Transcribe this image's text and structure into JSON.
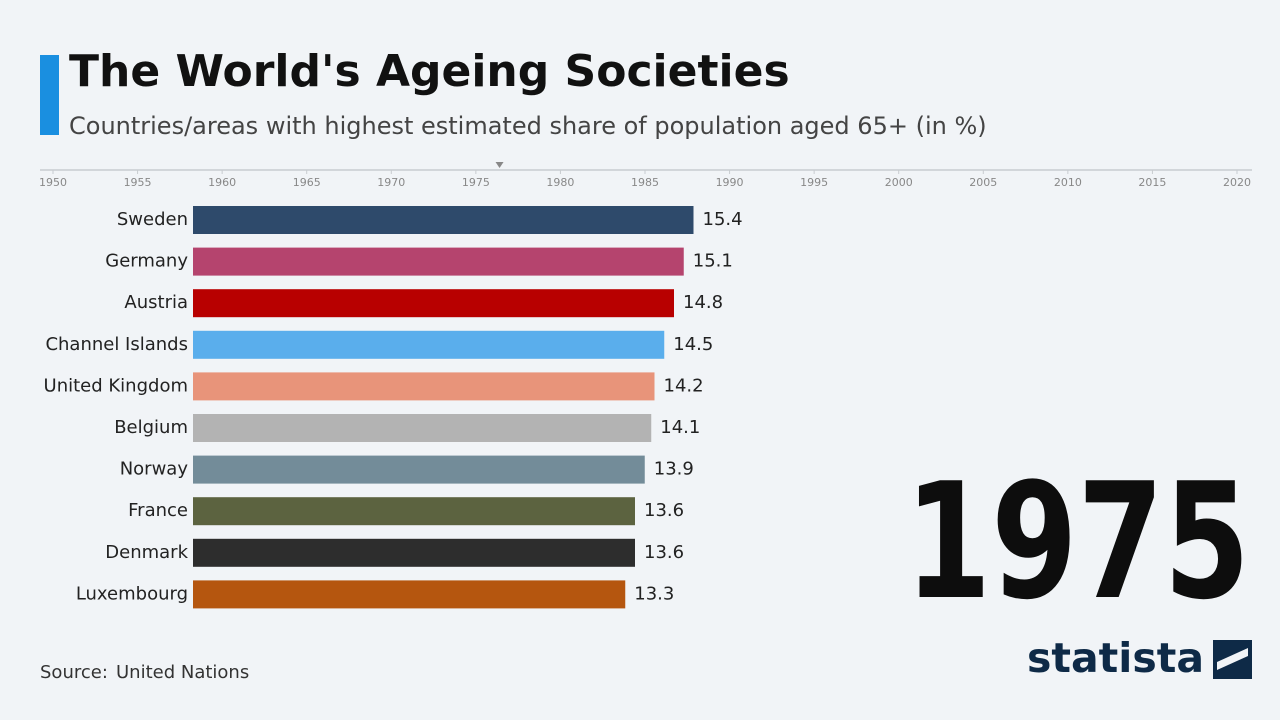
{
  "chart_data": {
    "type": "bar",
    "orientation": "horizontal",
    "title": "The World's Ageing Societies",
    "subtitle": "Countries/areas with highest estimated share of population aged 65+ (in %)",
    "categories": [
      "Sweden",
      "Germany",
      "Austria",
      "Channel Islands",
      "United Kingdom",
      "Belgium",
      "Norway",
      "France",
      "Denmark",
      "Luxembourg"
    ],
    "values": [
      15.4,
      15.1,
      14.8,
      14.5,
      14.2,
      14.1,
      13.9,
      13.6,
      13.6,
      13.3
    ],
    "colors": [
      "#2e4a6b",
      "#b5446e",
      "#b80000",
      "#5aaeec",
      "#e8947a",
      "#b3b3b3",
      "#738c99",
      "#5c6340",
      "#2d2d2d",
      "#b5560f"
    ],
    "xlim": [
      0,
      20
    ],
    "year_label": "1975",
    "timeline": {
      "xlim": [
        1950,
        2020
      ],
      "xticks": [
        1950,
        1955,
        1960,
        1965,
        1970,
        1975,
        1980,
        1985,
        1990,
        1995,
        2000,
        2005,
        2010,
        2015,
        2020
      ],
      "marker": 1976.4
    },
    "source_label": "Source:",
    "source": "United Nations",
    "logo": "statista"
  }
}
